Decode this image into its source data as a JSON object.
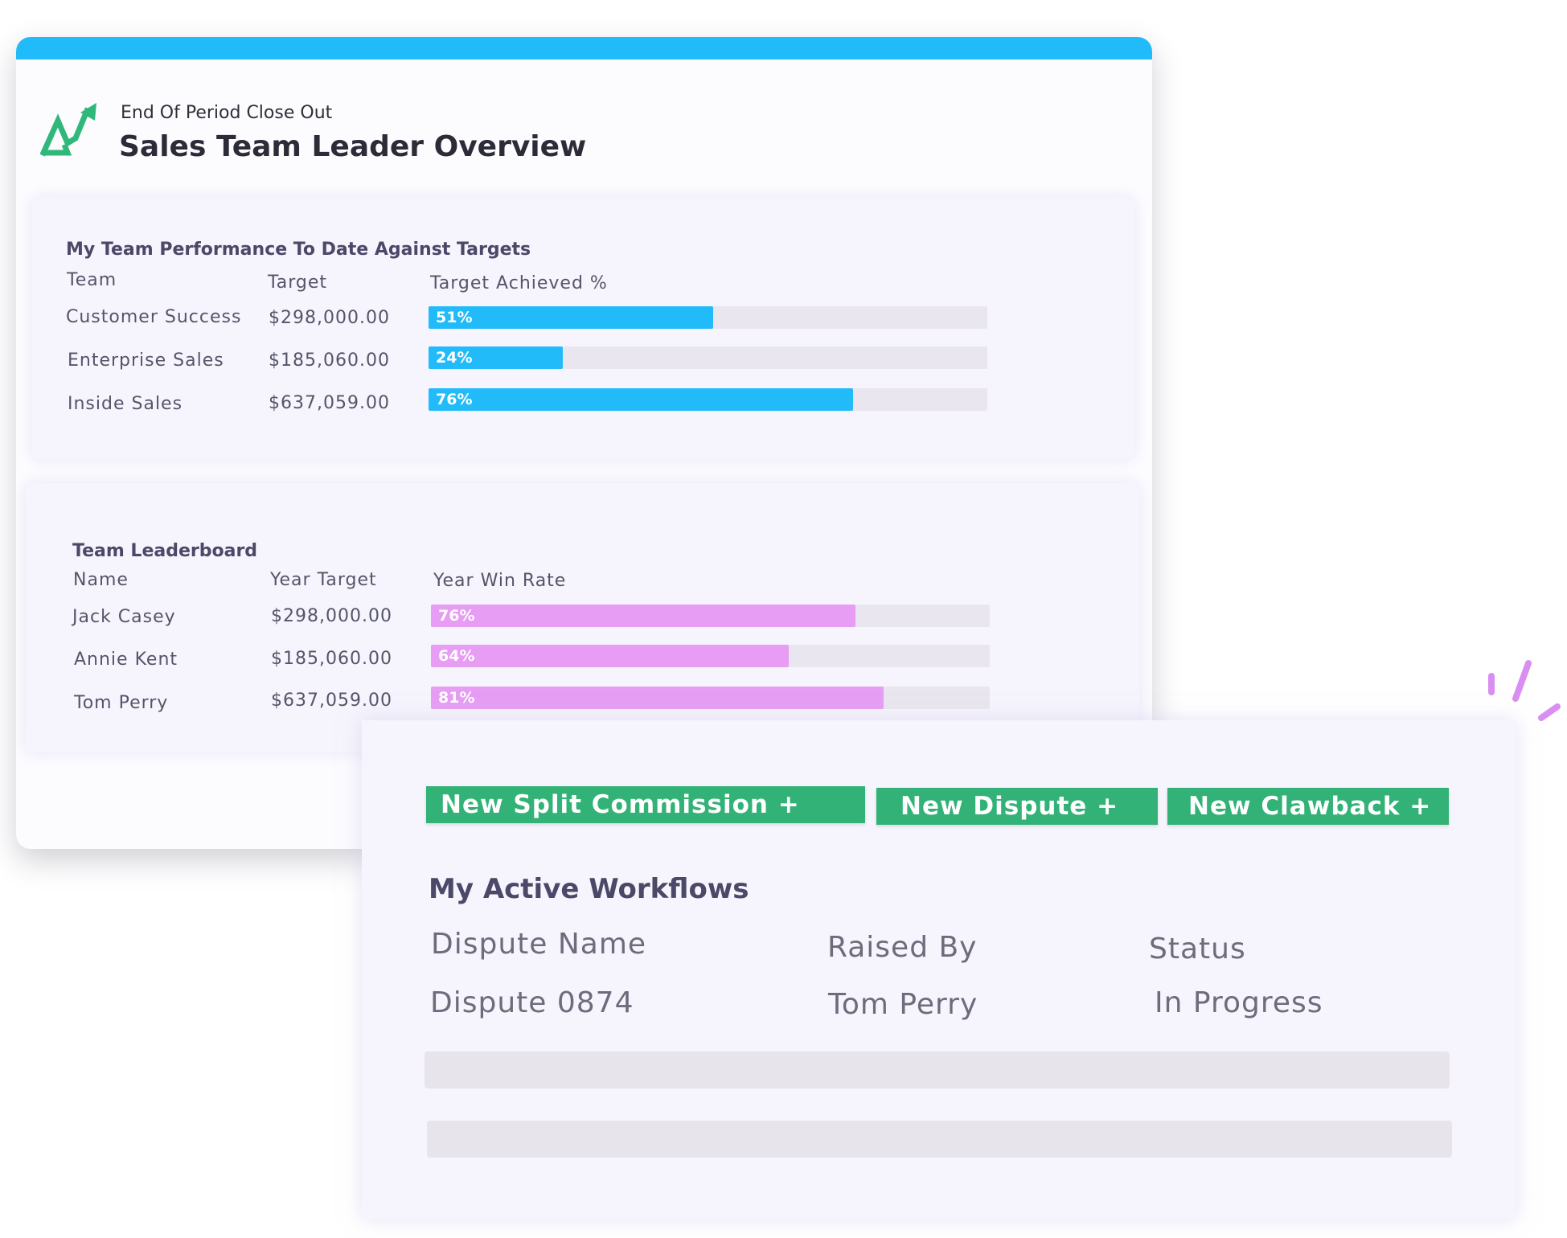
{
  "header": {
    "subtitle": "End Of Period Close Out",
    "title": "Sales Team Leader Overview",
    "logo_icon": "growth-arrow-logo-icon",
    "accent_color": "#22bbf9",
    "logo_color": "#2fb87a"
  },
  "performance": {
    "title": "My Team Performance To Date Against Targets",
    "columns": [
      "Team",
      "Target",
      "Target Achieved %"
    ],
    "bar_color": "#22bbf9",
    "rows": [
      {
        "team": "Customer Success",
        "target": "$298,000.00",
        "achieved": 51,
        "label": "51%"
      },
      {
        "team": "Enterprise Sales",
        "target": "$185,060.00",
        "achieved": 24,
        "label": "24%"
      },
      {
        "team": "Inside Sales",
        "target": "$637,059.00",
        "achieved": 76,
        "label": "76%"
      }
    ]
  },
  "leaderboard": {
    "title": "Team Leaderboard",
    "columns": [
      "Name",
      "Year Target",
      "Year Win Rate"
    ],
    "bar_color": "#e69df3",
    "rows": [
      {
        "name": "Jack Casey",
        "target": "$298,000.00",
        "rate": 76,
        "label": "76%"
      },
      {
        "name": "Annie Kent",
        "target": "$185,060.00",
        "rate": 64,
        "label": "64%"
      },
      {
        "name": "Tom Perry",
        "target": "$637,059.00",
        "rate": 81,
        "label": "81%"
      }
    ]
  },
  "actions": {
    "button_color": "#33b277",
    "new_split_commission": "New Split Commission +",
    "new_dispute": "New Dispute +",
    "new_clawback": "New Clawback +"
  },
  "workflows": {
    "title": "My Active Workflows",
    "columns": [
      "Dispute Name",
      "Raised By",
      "Status"
    ],
    "rows": [
      {
        "dispute": "Dispute 0874",
        "raised_by": "Tom Perry",
        "status": "In Progress"
      }
    ]
  }
}
